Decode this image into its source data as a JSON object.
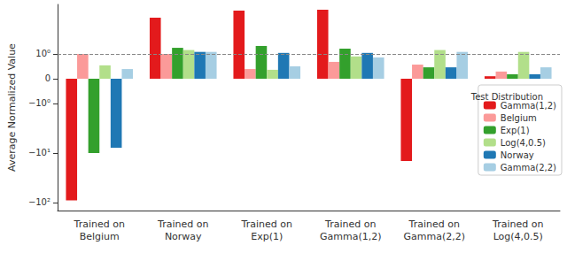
{
  "chart_data": {
    "type": "bar",
    "y_label": "Average Normalized Value",
    "categories": [
      "Trained on\nBelgium",
      "Trained on\nNorway",
      "Trained on\nExp(1)",
      "Trained on\nGamma(1,2)",
      "Trained on\nGamma(2,2)",
      "Trained on\nLog(4,0.5)"
    ],
    "series": [
      {
        "name": "Gamma(1,2)",
        "color": "#e31a1c",
        "values": [
          -90,
          5.4,
          7.5,
          7.8,
          -14.5,
          0.1
        ]
      },
      {
        "name": "Belgium",
        "color": "#fb9a99",
        "values": [
          1.0,
          1.0,
          0.39,
          0.68,
          0.57,
          0.29
        ]
      },
      {
        "name": "Exp(1)",
        "color": "#33a02c",
        "values": [
          -10,
          1.33,
          1.45,
          1.28,
          0.46,
          0.18
        ]
      },
      {
        "name": "Log(4,0.5)",
        "color": "#b2df8a",
        "values": [
          0.54,
          1.2,
          0.36,
          0.9,
          1.2,
          1.1
        ]
      },
      {
        "name": "Norway",
        "color": "#1f78b4",
        "values": [
          -7.8,
          1.1,
          1.05,
          1.05,
          0.46,
          0.18
        ]
      },
      {
        "name": "Gamma(2,2)",
        "color": "#a6cee3",
        "values": [
          0.39,
          1.1,
          0.5,
          0.86,
          1.1,
          0.46
        ]
      }
    ],
    "log": "y",
    "ylim": [
      -145,
      10
    ],
    "yticks": [
      {
        "value": -100,
        "label": "−10²"
      },
      {
        "value": -10,
        "label": "−10¹"
      },
      {
        "value": -1,
        "label": "−10⁰"
      },
      0,
      {
        "value": 1,
        "label": "10⁰"
      }
    ],
    "reference_line": 1,
    "grid": false,
    "legend": "right",
    "legend_title": "Test Distribution"
  }
}
